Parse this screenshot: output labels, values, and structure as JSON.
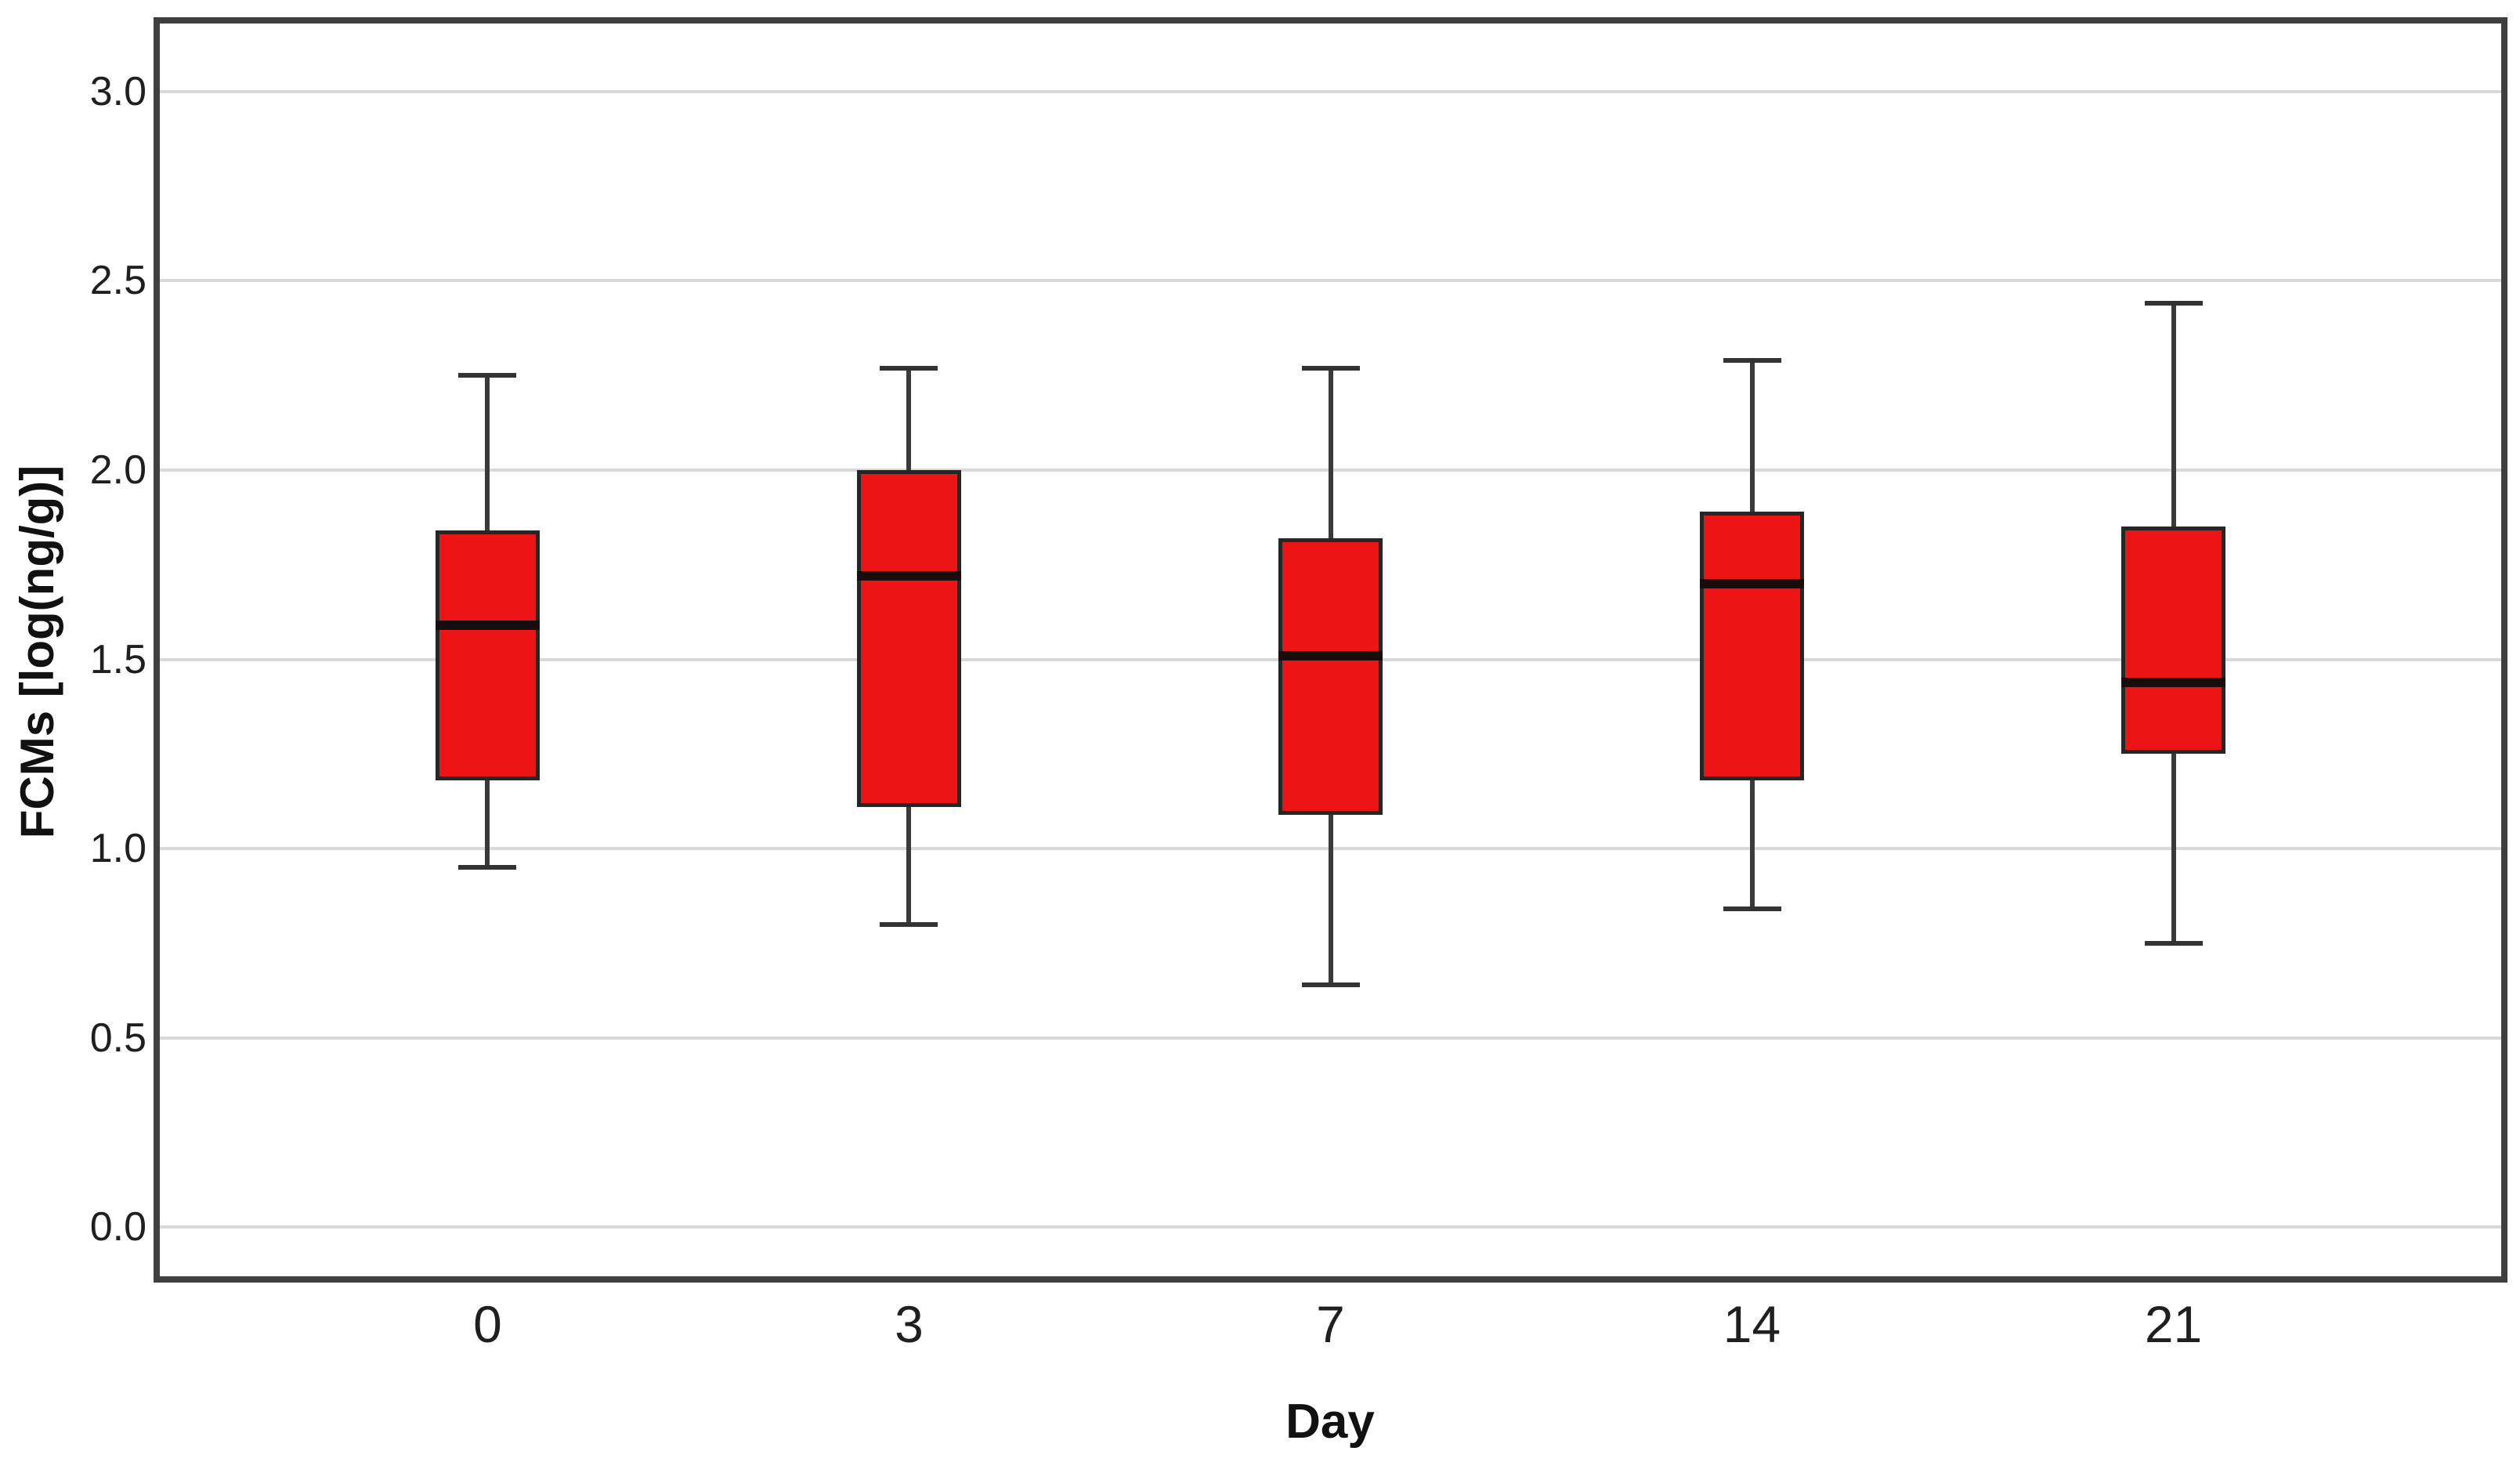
{
  "figure": {
    "background": "#ffffff"
  },
  "chart_data": {
    "type": "boxplot",
    "title": "",
    "xlabel": "Day",
    "ylabel": "FCMs [log(ng/g)]",
    "categories": [
      "0",
      "3",
      "7",
      "14",
      "21"
    ],
    "series": [
      {
        "category": "0",
        "whisker_low": 0.95,
        "q1": 1.18,
        "median": 1.59,
        "q3": 1.84,
        "whisker_high": 2.25
      },
      {
        "category": "3",
        "whisker_low": 0.8,
        "q1": 1.11,
        "median": 1.72,
        "q3": 2.0,
        "whisker_high": 2.27
      },
      {
        "category": "7",
        "whisker_low": 0.64,
        "q1": 1.09,
        "median": 1.51,
        "q3": 1.82,
        "whisker_high": 2.27
      },
      {
        "category": "14",
        "whisker_low": 0.84,
        "q1": 1.18,
        "median": 1.7,
        "q3": 1.89,
        "whisker_high": 2.29
      },
      {
        "category": "21",
        "whisker_low": 0.75,
        "q1": 1.25,
        "median": 1.44,
        "q3": 1.85,
        "whisker_high": 2.44
      }
    ],
    "y_ticks": [
      {
        "value": 3.0,
        "label": "3.0"
      },
      {
        "value": 2.5,
        "label": "2.5"
      },
      {
        "value": 2.0,
        "label": "2.0"
      },
      {
        "value": 1.5,
        "label": "1.5"
      },
      {
        "value": 1.0,
        "label": "1.0"
      },
      {
        "value": 0.5,
        "label": "0.5"
      },
      {
        "value": 0.0,
        "label": "0.0"
      }
    ],
    "ylim": [
      -0.13,
      3.18
    ],
    "grid": "horizontal",
    "legend": "none",
    "colors": {
      "box_fill": "#ec1414",
      "box_border": "#262626",
      "median": "#190c0c",
      "whisker": "#3a3a3a",
      "gridline": "#d9d9d9",
      "plot_border": "#3f3f3f",
      "text": "#1f1f1f"
    }
  }
}
